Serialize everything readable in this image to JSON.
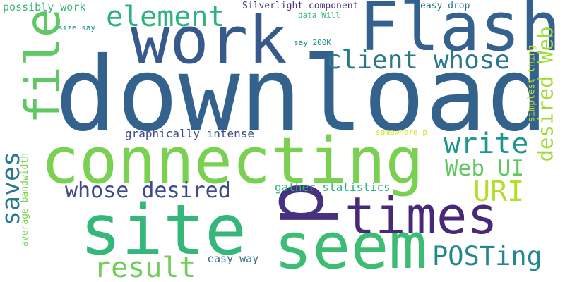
{
  "background": "#ffffff",
  "words": {
    "download": "download",
    "flash": "Flash",
    "work": "work",
    "connecting": "connecting",
    "site": "site",
    "seem": "seem",
    "p": "p",
    "times": "times",
    "file": "file",
    "element": "element",
    "client_whose": "client whose",
    "write": "write",
    "web_ui": "Web UI",
    "uri": "URI",
    "saves": "saves",
    "whose_desired": "whose desired",
    "desired_web": "desired Web",
    "posting": "POSTing",
    "result": "result",
    "graphically_intense": "graphically intense",
    "gather_statistics": "gather statistics",
    "average_bandwidth": "average bandwidth",
    "easy_way": "easy way",
    "possibly_work": "possibly work",
    "size_say": "size say",
    "silverlight_component": "Silverlight component",
    "data_will": "data Will",
    "easy_drop": "easy drop",
    "say_200k": "say 200K",
    "simplest_thing": "simplest thing",
    "somewhere_p": "somewhere p"
  },
  "palette": {
    "dark_purple": "#482878",
    "indigo": "#3e4a89",
    "blue": "#33638d",
    "teal": "#23888e",
    "green": "#35b779",
    "lime": "#7ad151",
    "yellow": "#b5de2b"
  }
}
